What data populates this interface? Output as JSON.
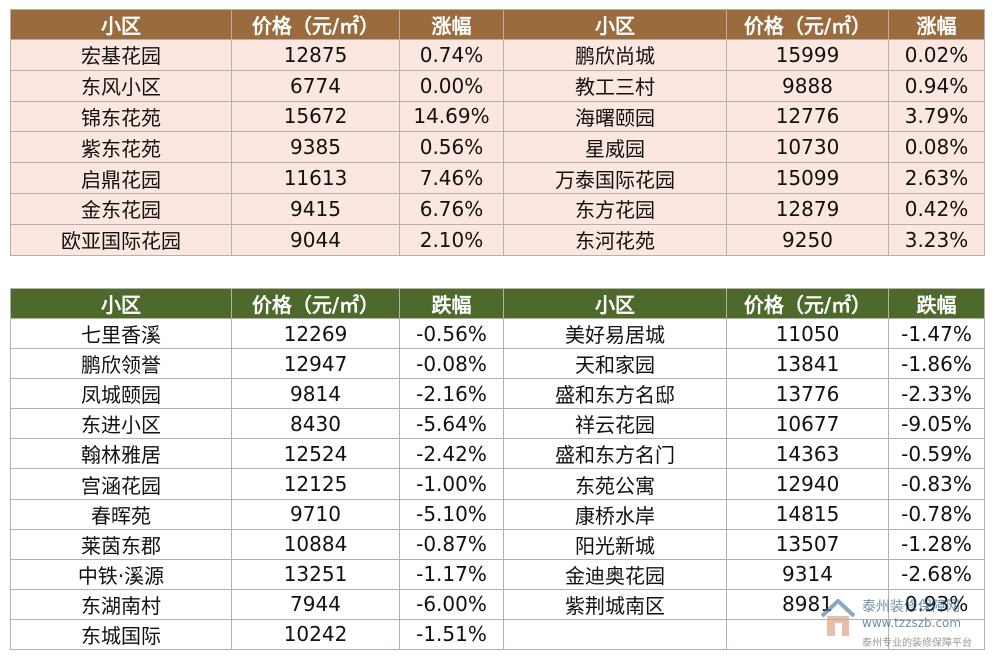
{
  "rise_table": {
    "headers": [
      "小区",
      "价格（元/㎡）",
      "涨幅",
      "小区",
      "价格（元/㎡）",
      "涨幅"
    ],
    "rows": [
      [
        "宏基花园",
        "12875",
        "0.74%",
        "鹏欣尚城",
        "15999",
        "0.02%"
      ],
      [
        "东风小区",
        "6774",
        "0.00%",
        "教工三村",
        "9888",
        "0.94%"
      ],
      [
        "锦东花苑",
        "15672",
        "14.69%",
        "海曙颐园",
        "12776",
        "3.79%"
      ],
      [
        "紫东花苑",
        "9385",
        "0.56%",
        "星威园",
        "10730",
        "0.08%"
      ],
      [
        "启鼎花园",
        "11613",
        "7.46%",
        "万泰国际花园",
        "15099",
        "2.63%"
      ],
      [
        "金东花园",
        "9415",
        "6.76%",
        "东方花园",
        "12879",
        "0.42%"
      ],
      [
        "欧亚国际花园",
        "9044",
        "2.10%",
        "东河花苑",
        "9250",
        "3.23%"
      ]
    ],
    "header_color": "#9a6b3d",
    "row_color": "#fbe7df"
  },
  "fall_table": {
    "headers": [
      "小区",
      "价格（元/㎡）",
      "跌幅",
      "小区",
      "价格（元/㎡）",
      "跌幅"
    ],
    "rows": [
      [
        "七里香溪",
        "12269",
        "-0.56%",
        "美好易居城",
        "11050",
        "-1.47%"
      ],
      [
        "鹏欣领誉",
        "12947",
        "-0.08%",
        "天和家园",
        "13841",
        "-1.86%"
      ],
      [
        "凤城颐园",
        "9814",
        "-2.16%",
        "盛和东方名邸",
        "13776",
        "-2.33%"
      ],
      [
        "东进小区",
        "8430",
        "-5.64%",
        "祥云花园",
        "10677",
        "-9.05%"
      ],
      [
        "翰林雅居",
        "12524",
        "-2.42%",
        "盛和东方名门",
        "14363",
        "-0.59%"
      ],
      [
        "宫涵花园",
        "12125",
        "-1.00%",
        "东苑公寓",
        "12940",
        "-0.83%"
      ],
      [
        "春晖苑",
        "9710",
        "-5.10%",
        "康桥水岸",
        "14815",
        "-0.78%"
      ],
      [
        "莱茵东郡",
        "10884",
        "-0.87%",
        "阳光新城",
        "13507",
        "-1.28%"
      ],
      [
        "中铁·溪源",
        "13251",
        "-1.17%",
        "金迪奥花园",
        "9314",
        "-2.68%"
      ],
      [
        "东湖南村",
        "7944",
        "-6.00%",
        "紫荆城南区",
        "8981",
        "0.93%"
      ],
      [
        "东城国际",
        "10242",
        "-1.51%",
        "",
        "",
        ""
      ]
    ],
    "header_color": "#4d6a2c",
    "row_color": "#ffffff"
  },
  "watermark": {
    "name": "泰州装修保障网",
    "url": "www.tzzszb.com",
    "slogan": "泰州专业的装修保障平台",
    "icon": "house-logo-icon"
  }
}
